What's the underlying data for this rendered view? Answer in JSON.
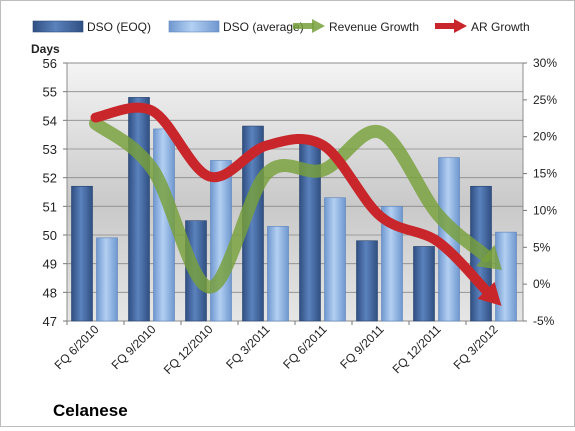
{
  "chart_data": {
    "type": "bar",
    "company": "Celanese",
    "left_axis": {
      "label": "Days",
      "min": 47,
      "max": 56,
      "ticks": [
        47,
        48,
        49,
        50,
        51,
        52,
        53,
        54,
        55,
        56
      ]
    },
    "right_axis": {
      "min": -5,
      "max": 30,
      "ticks": [
        "-5%",
        "0%",
        "5%",
        "10%",
        "15%",
        "20%",
        "25%",
        "30%"
      ],
      "tick_values": [
        -5,
        0,
        5,
        10,
        15,
        20,
        25,
        30
      ]
    },
    "categories": [
      "FQ 6/2010",
      "FQ 9/2010",
      "FQ 12/2010",
      "FQ 3/2011",
      "FQ 6/2011",
      "FQ 9/2011",
      "FQ 12/2011",
      "FQ 3/2012"
    ],
    "series": [
      {
        "name": "DSO (EOQ)",
        "kind": "bar",
        "axis": "left",
        "color": "#4a6da4",
        "values": [
          51.7,
          54.8,
          50.5,
          53.8,
          53.2,
          49.8,
          49.6,
          51.7
        ]
      },
      {
        "name": "DSO (average)",
        "kind": "bar",
        "axis": "left",
        "color": "#8db3e2",
        "values": [
          49.9,
          53.7,
          52.6,
          50.3,
          51.3,
          51.0,
          52.7,
          50.1
        ]
      },
      {
        "name": "Revenue Growth",
        "kind": "arrow",
        "axis": "right",
        "color": "#77a03b",
        "values": [
          21.8,
          15.6,
          -0.4,
          15.0,
          15.5,
          20.6,
          9.5,
          2.8
        ]
      },
      {
        "name": "AR Growth",
        "kind": "arrow",
        "axis": "right",
        "color": "#c8262b",
        "values": [
          22.6,
          23.5,
          14.6,
          18.8,
          18.8,
          9.2,
          5.8,
          -2.0
        ]
      }
    ],
    "legend_position": "top",
    "grid": true
  }
}
